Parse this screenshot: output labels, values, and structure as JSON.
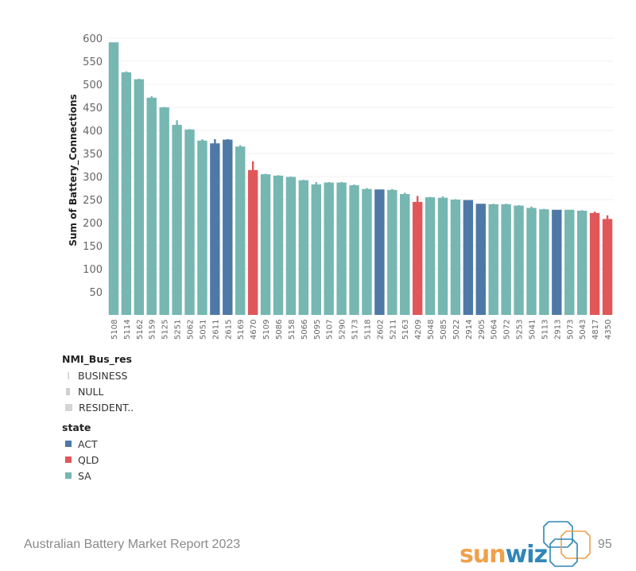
{
  "chart_data": {
    "type": "bar",
    "title": "",
    "xlabel": "",
    "ylabel": "Sum of Battery_Connections",
    "ylim": [
      0,
      600
    ],
    "yticks": [
      50,
      100,
      150,
      200,
      250,
      300,
      350,
      400,
      450,
      500,
      550,
      600
    ],
    "grid": true,
    "categories": [
      "5108",
      "5114",
      "5162",
      "5159",
      "5125",
      "5251",
      "5062",
      "5051",
      "2611",
      "2615",
      "5169",
      "4670",
      "5109",
      "5086",
      "5158",
      "5066",
      "5095",
      "5107",
      "5290",
      "5173",
      "5118",
      "2602",
      "5211",
      "5163",
      "4209",
      "5048",
      "5085",
      "5022",
      "2914",
      "2905",
      "5064",
      "5072",
      "5253",
      "5041",
      "5113",
      "2913",
      "5073",
      "5043",
      "4817",
      "4350"
    ],
    "values": [
      591,
      526,
      511,
      471,
      450,
      412,
      402,
      378,
      372,
      380,
      365,
      314,
      305,
      302,
      299,
      292,
      283,
      287,
      287,
      281,
      273,
      272,
      271,
      262,
      245,
      255,
      254,
      250,
      249,
      241,
      240,
      240,
      237,
      232,
      229,
      228,
      228,
      226,
      221,
      208
    ],
    "spike_tops": [
      591,
      528,
      512,
      474,
      451,
      422,
      403,
      381,
      381,
      381,
      368,
      333,
      306,
      303,
      300,
      293,
      288,
      288,
      288,
      283,
      275,
      272,
      273,
      265,
      258,
      256,
      257,
      251,
      249,
      241,
      241,
      241,
      238,
      235,
      230,
      228,
      228,
      227,
      224,
      216
    ],
    "states": [
      "SA",
      "SA",
      "SA",
      "SA",
      "SA",
      "SA",
      "SA",
      "SA",
      "ACT",
      "ACT",
      "SA",
      "QLD",
      "SA",
      "SA",
      "SA",
      "SA",
      "SA",
      "SA",
      "SA",
      "SA",
      "SA",
      "ACT",
      "SA",
      "SA",
      "QLD",
      "SA",
      "SA",
      "SA",
      "ACT",
      "ACT",
      "SA",
      "SA",
      "SA",
      "SA",
      "SA",
      "ACT",
      "SA",
      "SA",
      "QLD",
      "QLD"
    ],
    "state_colors": {
      "ACT": "#4e79a7",
      "QLD": "#e15759",
      "SA": "#76b7b2"
    },
    "legend": {
      "size_legend": {
        "title": "NMI_Bus_res",
        "items": [
          "BUSINESS",
          "NULL",
          "RESIDENT.."
        ]
      },
      "color_legend": {
        "title": "state",
        "items": [
          "ACT",
          "QLD",
          "SA"
        ]
      },
      "placement": "bottom-left"
    }
  },
  "footer": {
    "report_title": "Australian Battery Market Report 2023",
    "page_number": "95",
    "logo_text_1": "sun",
    "logo_text_2": "wiz"
  }
}
